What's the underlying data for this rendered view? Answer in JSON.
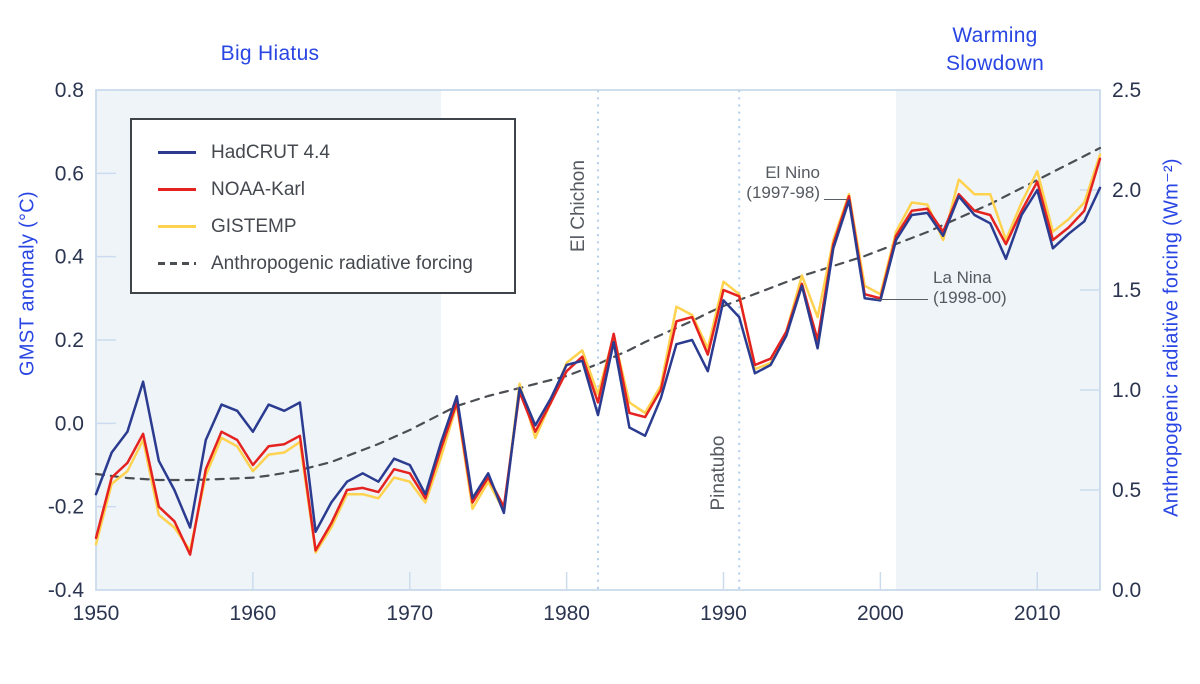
{
  "chart_data": {
    "type": "line",
    "title": "",
    "x_axis": {
      "min": 1950,
      "max": 2014,
      "ticks": [
        "1950",
        "1960",
        "1970",
        "1980",
        "1990",
        "2000",
        "2010"
      ]
    },
    "left_axis": {
      "label": "GMST anomaly (°C)",
      "min": -0.4,
      "max": 0.8,
      "ticks": [
        "0.8",
        "0.6",
        "0.4",
        "0.2",
        "0.0",
        "-0.2",
        "-0.4"
      ]
    },
    "right_axis": {
      "label": "Anthropogenic radiative forcing (Wm⁻²)",
      "min": 0.0,
      "max": 2.5,
      "ticks": [
        "2.5",
        "2.0",
        "1.5",
        "1.0",
        "0.5",
        "0.0"
      ]
    },
    "grid": false,
    "legend_position": "top-left",
    "years": [
      1950,
      1951,
      1952,
      1953,
      1954,
      1955,
      1956,
      1957,
      1958,
      1959,
      1960,
      1961,
      1962,
      1963,
      1964,
      1965,
      1966,
      1967,
      1968,
      1969,
      1970,
      1971,
      1972,
      1973,
      1974,
      1975,
      1976,
      1977,
      1978,
      1979,
      1980,
      1981,
      1982,
      1983,
      1984,
      1985,
      1986,
      1987,
      1988,
      1989,
      1990,
      1991,
      1992,
      1993,
      1994,
      1995,
      1996,
      1997,
      1998,
      1999,
      2000,
      2001,
      2002,
      2003,
      2004,
      2005,
      2006,
      2007,
      2008,
      2009,
      2010,
      2011,
      2012,
      2013,
      2014
    ],
    "series": [
      {
        "name": "HadCRUT 4.4",
        "color": "#2b3c90",
        "axis": "left",
        "dashed": false,
        "values": [
          -0.17,
          -0.07,
          -0.02,
          0.1,
          -0.09,
          -0.16,
          -0.25,
          -0.04,
          0.045,
          0.03,
          -0.02,
          0.045,
          0.03,
          0.05,
          -0.26,
          -0.19,
          -0.14,
          -0.12,
          -0.14,
          -0.085,
          -0.1,
          -0.17,
          -0.045,
          0.065,
          -0.18,
          -0.12,
          -0.215,
          0.085,
          -0.005,
          0.06,
          0.14,
          0.15,
          0.02,
          0.195,
          -0.01,
          -0.03,
          0.06,
          0.19,
          0.2,
          0.125,
          0.295,
          0.255,
          0.12,
          0.14,
          0.21,
          0.33,
          0.18,
          0.42,
          0.535,
          0.3,
          0.295,
          0.44,
          0.5,
          0.505,
          0.45,
          0.545,
          0.5,
          0.48,
          0.395,
          0.5,
          0.56,
          0.42,
          0.455,
          0.485,
          0.565
        ]
      },
      {
        "name": "NOAA-Karl",
        "color": "#e42320",
        "axis": "left",
        "dashed": false,
        "values": [
          -0.275,
          -0.13,
          -0.095,
          -0.025,
          -0.2,
          -0.235,
          -0.315,
          -0.11,
          -0.02,
          -0.04,
          -0.1,
          -0.055,
          -0.05,
          -0.03,
          -0.305,
          -0.24,
          -0.16,
          -0.155,
          -0.165,
          -0.11,
          -0.12,
          -0.18,
          -0.06,
          0.05,
          -0.19,
          -0.13,
          -0.2,
          0.075,
          -0.02,
          0.05,
          0.125,
          0.16,
          0.05,
          0.215,
          0.025,
          0.015,
          0.08,
          0.245,
          0.255,
          0.165,
          0.32,
          0.305,
          0.14,
          0.155,
          0.22,
          0.335,
          0.2,
          0.43,
          0.545,
          0.31,
          0.3,
          0.45,
          0.51,
          0.515,
          0.46,
          0.55,
          0.51,
          0.5,
          0.43,
          0.51,
          0.58,
          0.44,
          0.47,
          0.51,
          0.635
        ]
      },
      {
        "name": "GISTEMP",
        "color": "#ffd24f",
        "axis": "left",
        "dashed": false,
        "values": [
          -0.29,
          -0.145,
          -0.115,
          -0.04,
          -0.22,
          -0.25,
          -0.305,
          -0.125,
          -0.035,
          -0.055,
          -0.115,
          -0.075,
          -0.07,
          -0.045,
          -0.31,
          -0.25,
          -0.17,
          -0.17,
          -0.18,
          -0.13,
          -0.14,
          -0.19,
          -0.08,
          0.045,
          -0.205,
          -0.14,
          -0.21,
          0.095,
          -0.035,
          0.05,
          0.145,
          0.175,
          0.07,
          0.21,
          0.05,
          0.025,
          0.09,
          0.28,
          0.26,
          0.18,
          0.34,
          0.31,
          0.13,
          0.145,
          0.22,
          0.355,
          0.255,
          0.44,
          0.55,
          0.33,
          0.31,
          0.46,
          0.53,
          0.525,
          0.44,
          0.585,
          0.55,
          0.55,
          0.44,
          0.53,
          0.605,
          0.46,
          0.49,
          0.53,
          0.645
        ]
      },
      {
        "name": "Anthropogenic radiative forcing",
        "color": "#4b4f54",
        "axis": "right",
        "dashed": true,
        "values": [
          0.58,
          0.57,
          0.56,
          0.555,
          0.55,
          0.55,
          0.55,
          0.552,
          0.555,
          0.558,
          0.562,
          0.572,
          0.585,
          0.6,
          0.62,
          0.64,
          0.67,
          0.7,
          0.73,
          0.765,
          0.8,
          0.84,
          0.88,
          0.92,
          0.945,
          0.97,
          0.99,
          1.01,
          1.03,
          1.05,
          1.07,
          1.1,
          1.13,
          1.165,
          1.2,
          1.24,
          1.275,
          1.31,
          1.345,
          1.385,
          1.42,
          1.45,
          1.48,
          1.51,
          1.54,
          1.57,
          1.595,
          1.62,
          1.645,
          1.67,
          1.7,
          1.73,
          1.76,
          1.79,
          1.825,
          1.86,
          1.895,
          1.93,
          1.97,
          2.01,
          2.05,
          2.09,
          2.13,
          2.17,
          2.21
        ]
      }
    ],
    "regions": [
      {
        "label": "Big Hiatus",
        "from": 1950,
        "to": 1972,
        "fill": "#eff4f9"
      },
      {
        "label": "Warming\nSlowdown",
        "from": 2001,
        "to": 2014,
        "fill": "#eff4f9"
      }
    ],
    "event_lines": [
      {
        "label": "El Chichon",
        "year": 1982
      },
      {
        "label": "Pinatubo",
        "year": 1991
      }
    ],
    "point_annotations": [
      {
        "label": "El Nino\n(1997-98)",
        "year": 1998,
        "value": 0.535
      },
      {
        "label": "La Nina\n(1998-00)",
        "year": 2000,
        "value": 0.3
      }
    ],
    "colors": {
      "accent_blue_text": "#2946e4",
      "tick_label": "#2b3550",
      "frame": "#bfd3e6",
      "tick_mark": "#ccdcee",
      "event_line": "#b7d2ec",
      "annotation_text": "#555a61",
      "region_fill": "#eff4f9"
    }
  }
}
